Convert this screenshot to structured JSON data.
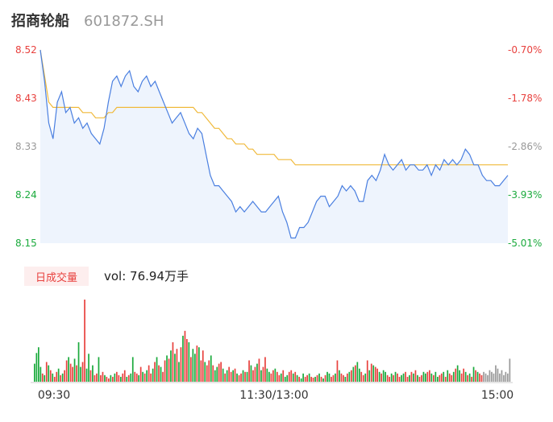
{
  "header": {
    "name": "招商轮船",
    "code": "601872.SH"
  },
  "colors": {
    "price_line": "#4a7fe0",
    "avg_line": "#f0b93a",
    "up": "#e8413e",
    "down": "#1aaa3c",
    "neutral": "#999999",
    "area_fill": "#eef4fd"
  },
  "volume_panel": {
    "tab_label": "日成交量",
    "summary": "vol: 76.94万手"
  },
  "chart_data": [
    {
      "type": "line",
      "title": "",
      "y_ticks_left": [
        "8.52",
        "8.43",
        "8.33",
        "8.24",
        "8.15"
      ],
      "y_ticks_right": [
        "-0.70%",
        "-1.78%",
        "-2.86%",
        "-3.93%",
        "-5.01%"
      ],
      "ylim": [
        8.15,
        8.52
      ],
      "x_ticks": [
        "09:30",
        "11:30/13:00",
        "15:00"
      ],
      "series": [
        {
          "role": "price",
          "values": [
            8.52,
            8.46,
            8.38,
            8.35,
            8.42,
            8.44,
            8.4,
            8.41,
            8.38,
            8.39,
            8.37,
            8.38,
            8.36,
            8.35,
            8.34,
            8.37,
            8.42,
            8.46,
            8.47,
            8.45,
            8.47,
            8.48,
            8.45,
            8.44,
            8.46,
            8.47,
            8.45,
            8.46,
            8.44,
            8.42,
            8.4,
            8.38,
            8.39,
            8.4,
            8.38,
            8.36,
            8.35,
            8.37,
            8.36,
            8.32,
            8.28,
            8.26,
            8.26,
            8.25,
            8.24,
            8.23,
            8.21,
            8.22,
            8.21,
            8.22,
            8.23,
            8.22,
            8.21,
            8.21,
            8.22,
            8.23,
            8.24,
            8.21,
            8.19,
            8.16,
            8.16,
            8.18,
            8.18,
            8.19,
            8.21,
            8.23,
            8.24,
            8.24,
            8.22,
            8.23,
            8.24,
            8.26,
            8.25,
            8.26,
            8.25,
            8.23,
            8.23,
            8.27,
            8.28,
            8.27,
            8.29,
            8.32,
            8.3,
            8.29,
            8.3,
            8.31,
            8.29,
            8.3,
            8.3,
            8.29,
            8.29,
            8.3,
            8.28,
            8.3,
            8.29,
            8.31,
            8.3,
            8.31,
            8.3,
            8.31,
            8.33,
            8.32,
            8.3,
            8.3,
            8.28,
            8.27,
            8.27,
            8.26,
            8.26,
            8.27,
            8.28
          ]
        },
        {
          "role": "average",
          "values": [
            8.52,
            8.47,
            8.42,
            8.41,
            8.41,
            8.41,
            8.41,
            8.41,
            8.41,
            8.41,
            8.4,
            8.4,
            8.4,
            8.39,
            8.39,
            8.39,
            8.4,
            8.4,
            8.41,
            8.41,
            8.41,
            8.41,
            8.41,
            8.41,
            8.41,
            8.41,
            8.41,
            8.41,
            8.41,
            8.41,
            8.41,
            8.41,
            8.41,
            8.41,
            8.41,
            8.41,
            8.41,
            8.4,
            8.4,
            8.39,
            8.38,
            8.37,
            8.37,
            8.36,
            8.35,
            8.35,
            8.34,
            8.34,
            8.34,
            8.33,
            8.33,
            8.32,
            8.32,
            8.32,
            8.32,
            8.32,
            8.31,
            8.31,
            8.31,
            8.31,
            8.3,
            8.3,
            8.3,
            8.3,
            8.3,
            8.3,
            8.3,
            8.3,
            8.3,
            8.3,
            8.3,
            8.3,
            8.3,
            8.3,
            8.3,
            8.3,
            8.3,
            8.3,
            8.3,
            8.3,
            8.3,
            8.3,
            8.3,
            8.3,
            8.3,
            8.3,
            8.3,
            8.3,
            8.3,
            8.3,
            8.3,
            8.3,
            8.3,
            8.3,
            8.3,
            8.3,
            8.3,
            8.3,
            8.3,
            8.3,
            8.3,
            8.3,
            8.3,
            8.3,
            8.3,
            8.3,
            8.3,
            8.3,
            8.3,
            8.3,
            8.3
          ]
        }
      ]
    },
    {
      "type": "bar",
      "title": "",
      "values": [
        22,
        35,
        42,
        18,
        10,
        8,
        24,
        20,
        14,
        10,
        6,
        12,
        16,
        8,
        10,
        14,
        26,
        30,
        22,
        18,
        28,
        20,
        48,
        18,
        24,
        100,
        16,
        34,
        14,
        20,
        8,
        10,
        30,
        8,
        12,
        8,
        6,
        4,
        8,
        6,
        10,
        12,
        8,
        6,
        10,
        14,
        6,
        8,
        10,
        30,
        12,
        10,
        8,
        18,
        12,
        10,
        14,
        20,
        10,
        16,
        24,
        30,
        20,
        18,
        12,
        26,
        32,
        28,
        38,
        48,
        34,
        40,
        24,
        42,
        56,
        62,
        52,
        48,
        30,
        40,
        34,
        44,
        42,
        26,
        38,
        24,
        20,
        26,
        32,
        20,
        14,
        18,
        22,
        24,
        16,
        10,
        14,
        18,
        12,
        14,
        16,
        10,
        8,
        10,
        14,
        12,
        12,
        26,
        20,
        14,
        18,
        22,
        28,
        14,
        18,
        30,
        16,
        12,
        10,
        14,
        16,
        12,
        8,
        10,
        14,
        6,
        8,
        12,
        14,
        10,
        12,
        8,
        6,
        4,
        10,
        6,
        8,
        10,
        6,
        5,
        6,
        8,
        10,
        6,
        4,
        8,
        12,
        10,
        6,
        8,
        10,
        26,
        14,
        10,
        8,
        6,
        10,
        12,
        14,
        18,
        20,
        24,
        16,
        12,
        8,
        10,
        26,
        14,
        22,
        20,
        18,
        16,
        12,
        10,
        14,
        12,
        8,
        6,
        10,
        8,
        12,
        10,
        6,
        8,
        10,
        12,
        6,
        8,
        12,
        10,
        14,
        8,
        6,
        8,
        12,
        10,
        12,
        14,
        10,
        8,
        12,
        6,
        8,
        10,
        12,
        6,
        14,
        10,
        8,
        12,
        16,
        20,
        14,
        10,
        16,
        12,
        8,
        10,
        6,
        18,
        14,
        12,
        10,
        8,
        12,
        10,
        8,
        14,
        12,
        10,
        20,
        16,
        10,
        14,
        8,
        12,
        10,
        28
      ],
      "colors": [
        "down",
        "down",
        "down",
        "down",
        "up",
        "down",
        "up",
        "down",
        "up",
        "down",
        "up",
        "up",
        "down",
        "up",
        "down",
        "up",
        "up",
        "down",
        "up",
        "up",
        "down",
        "up",
        "down",
        "down",
        "up",
        "up",
        "down",
        "down",
        "up",
        "down",
        "up",
        "up",
        "down",
        "up",
        "up",
        "down",
        "up",
        "up",
        "down",
        "up",
        "down",
        "up",
        "up",
        "down",
        "up",
        "up",
        "down",
        "up",
        "down",
        "down",
        "up",
        "up",
        "down",
        "up",
        "down",
        "up",
        "down",
        "up",
        "up",
        "down",
        "up",
        "down",
        "up",
        "down",
        "up",
        "up",
        "down",
        "up",
        "down",
        "up",
        "down",
        "up",
        "down",
        "up",
        "down",
        "up",
        "up",
        "down",
        "up",
        "down",
        "down",
        "up",
        "down",
        "up",
        "up",
        "down",
        "up",
        "up",
        "down",
        "up",
        "down",
        "down",
        "up",
        "up",
        "down",
        "up",
        "down",
        "up",
        "up",
        "down",
        "up",
        "down",
        "up",
        "up",
        "down",
        "up",
        "down",
        "up",
        "down",
        "up",
        "up",
        "down",
        "up",
        "down",
        "up",
        "up",
        "down",
        "down",
        "up",
        "up",
        "down",
        "up",
        "up",
        "down",
        "up",
        "down",
        "down",
        "up",
        "up",
        "down",
        "up",
        "down",
        "up",
        "down",
        "down",
        "up",
        "up",
        "down",
        "up",
        "up",
        "down",
        "up",
        "down",
        "up",
        "down",
        "up",
        "down",
        "down",
        "up",
        "up",
        "down",
        "up",
        "down",
        "up",
        "up",
        "down",
        "up",
        "down",
        "up",
        "down",
        "up",
        "down",
        "down",
        "up",
        "up",
        "down",
        "up",
        "down",
        "up",
        "down",
        "up",
        "up",
        "down",
        "up",
        "down",
        "down",
        "up",
        "up",
        "down",
        "up",
        "down",
        "up",
        "up",
        "down",
        "down",
        "up",
        "up",
        "down",
        "up",
        "down",
        "up",
        "down",
        "up",
        "up",
        "down",
        "down",
        "up",
        "up",
        "down",
        "up",
        "down",
        "down",
        "up",
        "up",
        "down",
        "up",
        "down",
        "up",
        "up",
        "down",
        "up",
        "down",
        "down",
        "up",
        "up",
        "down",
        "up",
        "down",
        "up",
        "down",
        "up",
        "down",
        "up",
        "up",
        "neutral"
      ]
    }
  ]
}
